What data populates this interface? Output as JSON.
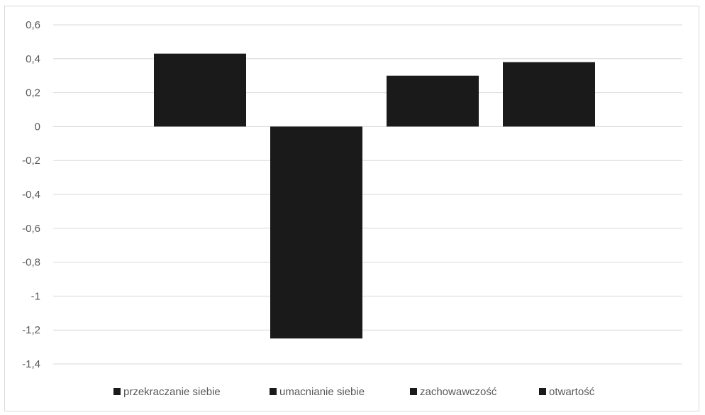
{
  "chart_data": {
    "type": "bar",
    "categories": [
      "przekraczanie siebie",
      "umacnianie siebie",
      "zachowawczość",
      "otwartość"
    ],
    "values": [
      0.43,
      -1.25,
      0.3,
      0.38
    ],
    "title": "",
    "xlabel": "",
    "ylabel": "",
    "ylim": [
      -1.4,
      0.6
    ],
    "yticks": [
      0.6,
      0.4,
      0.2,
      0,
      -0.2,
      -0.4,
      -0.6,
      -0.8,
      -1,
      -1.2,
      -1.4
    ],
    "ytick_labels": [
      "0,6",
      "0,4",
      "0,2",
      "0",
      "-0,2",
      "-0,4",
      "-0,6",
      "-0,8",
      "-1",
      "-1,2",
      "-1,4"
    ],
    "grid": true,
    "legend": {
      "position": "bottom",
      "entries": [
        "przekraczanie siebie",
        "umacnianie siebie",
        "zachowawczość",
        "otwartość"
      ]
    },
    "colors": {
      "bar": "#1a1a1a",
      "grid": "#d9d9d9",
      "text": "#595959"
    }
  }
}
